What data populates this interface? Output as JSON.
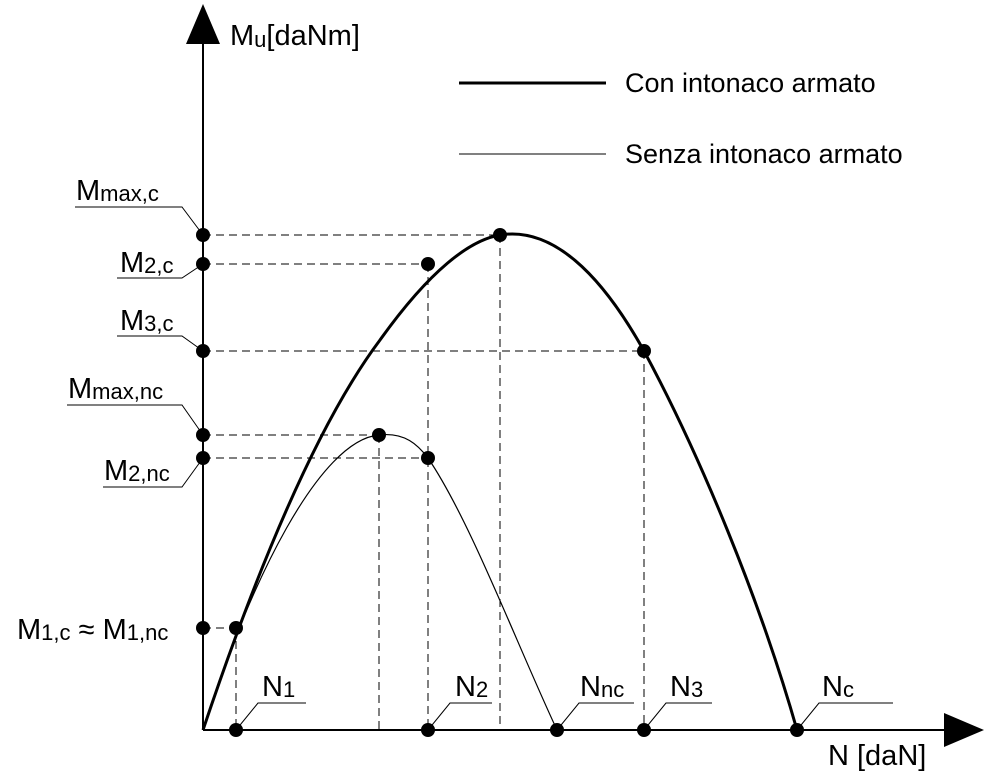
{
  "axes": {
    "y_label_main": "M",
    "y_label_sub": "u",
    "y_label_unit": "[daNm]",
    "x_label": "N [daN]"
  },
  "legend": {
    "thick": "Con intonaco armato",
    "thin": "Senza intonaco armato"
  },
  "moment_labels": {
    "mmax_c": {
      "main": "M",
      "sub": "max,c"
    },
    "m2_c": {
      "main": "M",
      "sub": "2,c"
    },
    "m3_c": {
      "main": "M",
      "sub": "3,c"
    },
    "mmax_nc": {
      "main": "M",
      "sub": "max,nc"
    },
    "m2_nc": {
      "main": "M",
      "sub": "2,nc"
    },
    "m1": {
      "main1": "M",
      "sub1": "1,c",
      "approx": " ≈ ",
      "main2": "M",
      "sub2": "1,nc"
    }
  },
  "force_labels": {
    "n1": {
      "main": "N",
      "sub": "1"
    },
    "n2": {
      "main": "N",
      "sub": "2"
    },
    "nnc": {
      "main": "N",
      "sub": "nc"
    },
    "n3": {
      "main": "N",
      "sub": "3"
    },
    "nc": {
      "main": "N",
      "sub": "c"
    }
  },
  "colors": {
    "ink": "#000000",
    "background": "#ffffff"
  }
}
